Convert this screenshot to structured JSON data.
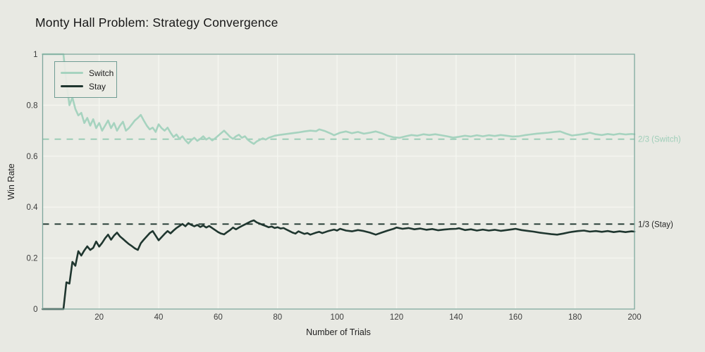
{
  "chart_data": {
    "type": "line",
    "title": "Monty Hall Problem: Strategy Convergence",
    "xlabel": "Number of Trials",
    "ylabel": "Win Rate",
    "xlim": [
      1,
      200
    ],
    "ylim": [
      0,
      1
    ],
    "x_ticks": [
      20,
      40,
      60,
      80,
      100,
      120,
      140,
      160,
      180,
      200
    ],
    "y_ticks": [
      0,
      0.2,
      0.4,
      0.6,
      0.8,
      1
    ],
    "y_tick_labels": [
      "0",
      "0.2",
      "0.4",
      "0.6",
      "0.8",
      "1"
    ],
    "grid": true,
    "legend_position": "upper-left",
    "series": [
      {
        "name": "Switch",
        "color": "#a6d3bf",
        "points": [
          [
            1,
            1
          ],
          [
            8,
            1
          ],
          [
            9,
            0.889
          ],
          [
            10,
            0.8
          ],
          [
            11,
            0.83
          ],
          [
            12,
            0.785
          ],
          [
            13,
            0.76
          ],
          [
            14,
            0.77
          ],
          [
            15,
            0.73
          ],
          [
            16,
            0.75
          ],
          [
            17,
            0.72
          ],
          [
            18,
            0.745
          ],
          [
            19,
            0.71
          ],
          [
            20,
            0.73
          ],
          [
            21,
            0.7
          ],
          [
            22,
            0.72
          ],
          [
            23,
            0.74
          ],
          [
            24,
            0.71
          ],
          [
            25,
            0.73
          ],
          [
            26,
            0.7
          ],
          [
            27,
            0.72
          ],
          [
            28,
            0.735
          ],
          [
            29,
            0.7
          ],
          [
            30,
            0.71
          ],
          [
            31,
            0.725
          ],
          [
            32,
            0.74
          ],
          [
            33,
            0.75
          ],
          [
            34,
            0.762
          ],
          [
            35,
            0.74
          ],
          [
            36,
            0.72
          ],
          [
            37,
            0.705
          ],
          [
            38,
            0.712
          ],
          [
            39,
            0.695
          ],
          [
            40,
            0.725
          ],
          [
            41,
            0.71
          ],
          [
            42,
            0.7
          ],
          [
            43,
            0.712
          ],
          [
            44,
            0.692
          ],
          [
            45,
            0.675
          ],
          [
            46,
            0.685
          ],
          [
            47,
            0.668
          ],
          [
            48,
            0.678
          ],
          [
            49,
            0.662
          ],
          [
            50,
            0.65
          ],
          [
            51,
            0.663
          ],
          [
            52,
            0.672
          ],
          [
            53,
            0.66
          ],
          [
            54,
            0.668
          ],
          [
            55,
            0.678
          ],
          [
            56,
            0.665
          ],
          [
            57,
            0.672
          ],
          [
            58,
            0.662
          ],
          [
            59,
            0.67
          ],
          [
            60,
            0.68
          ],
          [
            61,
            0.69
          ],
          [
            62,
            0.7
          ],
          [
            63,
            0.688
          ],
          [
            64,
            0.676
          ],
          [
            65,
            0.668
          ],
          [
            66,
            0.678
          ],
          [
            67,
            0.684
          ],
          [
            68,
            0.672
          ],
          [
            69,
            0.678
          ],
          [
            70,
            0.664
          ],
          [
            71,
            0.655
          ],
          [
            72,
            0.648
          ],
          [
            73,
            0.658
          ],
          [
            74,
            0.664
          ],
          [
            75,
            0.67
          ],
          [
            76,
            0.665
          ],
          [
            77,
            0.672
          ],
          [
            78,
            0.676
          ],
          [
            79,
            0.68
          ],
          [
            81,
            0.684
          ],
          [
            83,
            0.687
          ],
          [
            85,
            0.69
          ],
          [
            87,
            0.693
          ],
          [
            89,
            0.697
          ],
          [
            91,
            0.7
          ],
          [
            93,
            0.698
          ],
          [
            94,
            0.705
          ],
          [
            96,
            0.698
          ],
          [
            98,
            0.688
          ],
          [
            99,
            0.682
          ],
          [
            101,
            0.692
          ],
          [
            103,
            0.697
          ],
          [
            105,
            0.69
          ],
          [
            107,
            0.695
          ],
          [
            109,
            0.688
          ],
          [
            111,
            0.692
          ],
          [
            113,
            0.697
          ],
          [
            115,
            0.69
          ],
          [
            117,
            0.68
          ],
          [
            119,
            0.674
          ],
          [
            121,
            0.672
          ],
          [
            123,
            0.678
          ],
          [
            125,
            0.683
          ],
          [
            127,
            0.68
          ],
          [
            129,
            0.686
          ],
          [
            131,
            0.683
          ],
          [
            133,
            0.686
          ],
          [
            135,
            0.682
          ],
          [
            137,
            0.678
          ],
          [
            139,
            0.673
          ],
          [
            141,
            0.676
          ],
          [
            143,
            0.68
          ],
          [
            145,
            0.677
          ],
          [
            147,
            0.682
          ],
          [
            149,
            0.678
          ],
          [
            151,
            0.682
          ],
          [
            153,
            0.679
          ],
          [
            155,
            0.683
          ],
          [
            157,
            0.68
          ],
          [
            159,
            0.677
          ],
          [
            161,
            0.678
          ],
          [
            163,
            0.682
          ],
          [
            165,
            0.685
          ],
          [
            167,
            0.688
          ],
          [
            169,
            0.69
          ],
          [
            171,
            0.692
          ],
          [
            173,
            0.695
          ],
          [
            175,
            0.697
          ],
          [
            177,
            0.688
          ],
          [
            179,
            0.681
          ],
          [
            181,
            0.684
          ],
          [
            183,
            0.687
          ],
          [
            185,
            0.692
          ],
          [
            187,
            0.686
          ],
          [
            189,
            0.683
          ],
          [
            191,
            0.687
          ],
          [
            193,
            0.684
          ],
          [
            195,
            0.688
          ],
          [
            197,
            0.685
          ],
          [
            199,
            0.687
          ],
          [
            200,
            0.686
          ]
        ]
      },
      {
        "name": "Stay",
        "color": "#1f362f",
        "points": [
          [
            1,
            0
          ],
          [
            8,
            0
          ],
          [
            9,
            0.105
          ],
          [
            10,
            0.1
          ],
          [
            11,
            0.185
          ],
          [
            12,
            0.17
          ],
          [
            13,
            0.227
          ],
          [
            14,
            0.21
          ],
          [
            15,
            0.23
          ],
          [
            16,
            0.246
          ],
          [
            17,
            0.232
          ],
          [
            18,
            0.24
          ],
          [
            19,
            0.265
          ],
          [
            20,
            0.245
          ],
          [
            21,
            0.26
          ],
          [
            22,
            0.278
          ],
          [
            23,
            0.292
          ],
          [
            24,
            0.272
          ],
          [
            25,
            0.288
          ],
          [
            26,
            0.3
          ],
          [
            27,
            0.285
          ],
          [
            28,
            0.275
          ],
          [
            29,
            0.265
          ],
          [
            30,
            0.255
          ],
          [
            31,
            0.247
          ],
          [
            32,
            0.238
          ],
          [
            33,
            0.232
          ],
          [
            34,
            0.258
          ],
          [
            35,
            0.272
          ],
          [
            36,
            0.285
          ],
          [
            37,
            0.298
          ],
          [
            38,
            0.306
          ],
          [
            39,
            0.288
          ],
          [
            40,
            0.27
          ],
          [
            41,
            0.282
          ],
          [
            42,
            0.295
          ],
          [
            43,
            0.306
          ],
          [
            44,
            0.297
          ],
          [
            45,
            0.308
          ],
          [
            46,
            0.318
          ],
          [
            47,
            0.326
          ],
          [
            48,
            0.334
          ],
          [
            49,
            0.325
          ],
          [
            50,
            0.337
          ],
          [
            51,
            0.33
          ],
          [
            52,
            0.325
          ],
          [
            53,
            0.33
          ],
          [
            54,
            0.322
          ],
          [
            55,
            0.328
          ],
          [
            56,
            0.32
          ],
          [
            57,
            0.326
          ],
          [
            58,
            0.318
          ],
          [
            59,
            0.31
          ],
          [
            60,
            0.302
          ],
          [
            61,
            0.296
          ],
          [
            62,
            0.293
          ],
          [
            63,
            0.302
          ],
          [
            64,
            0.31
          ],
          [
            65,
            0.32
          ],
          [
            66,
            0.313
          ],
          [
            67,
            0.32
          ],
          [
            68,
            0.326
          ],
          [
            69,
            0.332
          ],
          [
            70,
            0.338
          ],
          [
            71,
            0.344
          ],
          [
            72,
            0.348
          ],
          [
            73,
            0.34
          ],
          [
            74,
            0.335
          ],
          [
            75,
            0.33
          ],
          [
            76,
            0.326
          ],
          [
            77,
            0.321
          ],
          [
            78,
            0.324
          ],
          [
            79,
            0.318
          ],
          [
            80,
            0.321
          ],
          [
            81,
            0.316
          ],
          [
            82,
            0.318
          ],
          [
            83,
            0.312
          ],
          [
            84,
            0.306
          ],
          [
            85,
            0.3
          ],
          [
            86,
            0.296
          ],
          [
            87,
            0.305
          ],
          [
            88,
            0.3
          ],
          [
            89,
            0.295
          ],
          [
            90,
            0.298
          ],
          [
            91,
            0.292
          ],
          [
            92,
            0.296
          ],
          [
            93,
            0.3
          ],
          [
            94,
            0.303
          ],
          [
            95,
            0.298
          ],
          [
            96,
            0.302
          ],
          [
            97,
            0.306
          ],
          [
            98,
            0.309
          ],
          [
            99,
            0.312
          ],
          [
            100,
            0.308
          ],
          [
            101,
            0.315
          ],
          [
            103,
            0.308
          ],
          [
            105,
            0.305
          ],
          [
            107,
            0.31
          ],
          [
            109,
            0.306
          ],
          [
            111,
            0.3
          ],
          [
            113,
            0.292
          ],
          [
            115,
            0.3
          ],
          [
            117,
            0.308
          ],
          [
            119,
            0.315
          ],
          [
            120,
            0.32
          ],
          [
            122,
            0.315
          ],
          [
            124,
            0.318
          ],
          [
            126,
            0.313
          ],
          [
            128,
            0.316
          ],
          [
            130,
            0.311
          ],
          [
            132,
            0.314
          ],
          [
            134,
            0.309
          ],
          [
            136,
            0.312
          ],
          [
            138,
            0.314
          ],
          [
            140,
            0.315
          ],
          [
            141,
            0.317
          ],
          [
            143,
            0.31
          ],
          [
            145,
            0.313
          ],
          [
            147,
            0.308
          ],
          [
            149,
            0.312
          ],
          [
            151,
            0.308
          ],
          [
            153,
            0.311
          ],
          [
            155,
            0.307
          ],
          [
            157,
            0.31
          ],
          [
            159,
            0.313
          ],
          [
            160,
            0.315
          ],
          [
            162,
            0.31
          ],
          [
            164,
            0.307
          ],
          [
            166,
            0.304
          ],
          [
            168,
            0.3
          ],
          [
            170,
            0.297
          ],
          [
            172,
            0.294
          ],
          [
            174,
            0.292
          ],
          [
            176,
            0.296
          ],
          [
            178,
            0.301
          ],
          [
            179,
            0.303
          ],
          [
            181,
            0.306
          ],
          [
            183,
            0.308
          ],
          [
            185,
            0.304
          ],
          [
            187,
            0.306
          ],
          [
            189,
            0.303
          ],
          [
            191,
            0.306
          ],
          [
            193,
            0.302
          ],
          [
            195,
            0.305
          ],
          [
            197,
            0.302
          ],
          [
            199,
            0.305
          ],
          [
            200,
            0.304
          ]
        ]
      }
    ],
    "reference_lines": [
      {
        "value": 0.6667,
        "label": "2/3 (Switch)",
        "color": "#96cbb4",
        "label_color": "#9fceb9"
      },
      {
        "value": 0.3333,
        "label": "1/3 (Stay)",
        "color": "#1f362f",
        "label_color": "#262626"
      }
    ]
  },
  "colors": {
    "background": "#e8e9e3",
    "plot_background": "#eaebe5",
    "grid": "#f5f6f0",
    "spine": "#7da69c",
    "tick_label": "#3c3c3c"
  }
}
